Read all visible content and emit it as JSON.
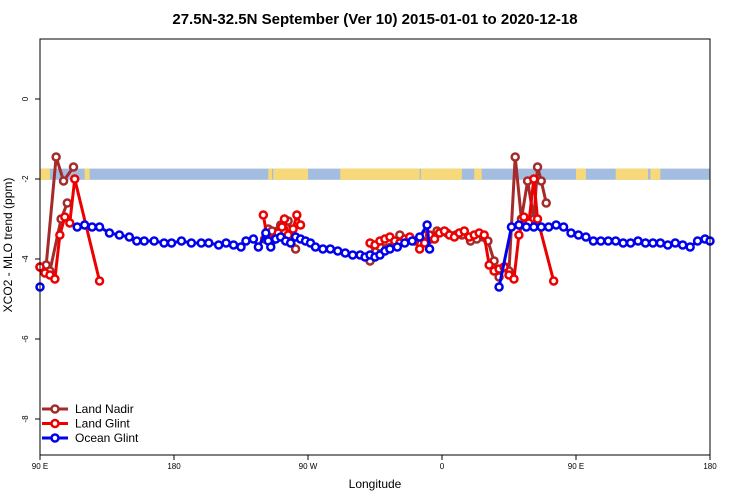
{
  "chart_data": {
    "type": "line",
    "title": "27.5N-32.5N September (Ver 10)   2015-01-01 to 2020-12-18",
    "xlabel": "Longitude",
    "ylabel": "XCO2 - MLO trend (ppm)",
    "xlim": [
      -90,
      180
    ],
    "ylim": [
      -8.9,
      1.5
    ],
    "x_ticks": [
      {
        "value": -90,
        "label": "90 E"
      },
      {
        "value": -36,
        "label": "180"
      },
      {
        "value": 18,
        "label": "90 W"
      },
      {
        "value": 72,
        "label": "0"
      },
      {
        "value": 126,
        "label": "90 E"
      },
      {
        "value": 180,
        "label": "180"
      }
    ],
    "y_ticks": [
      0,
      -2,
      -4,
      -6,
      -8
    ],
    "land_strip": {
      "y_center": -1.88,
      "height": 0.28,
      "ocean_color": "#a3bde0",
      "land_color": "#f7d97a",
      "land_segments": [
        [
          -90,
          -86
        ],
        [
          -72,
          -70
        ],
        [
          2,
          3.5
        ],
        [
          4,
          18
        ],
        [
          31,
          63
        ],
        [
          63.5,
          80
        ],
        [
          85,
          88
        ],
        [
          126,
          130
        ],
        [
          142,
          155
        ],
        [
          156,
          160
        ]
      ]
    },
    "legend": {
      "position": "bottom-left"
    },
    "series": [
      {
        "name": "Land Nadir",
        "color": "#a52a2a",
        "points": [
          [
            -90,
            -4.2
          ],
          [
            -87.5,
            -4.15
          ],
          [
            -83.5,
            -1.45
          ],
          [
            -80.5,
            -2.05
          ],
          [
            -76.5,
            -1.7
          ],
          [
            -90,
            -4.2
          ],
          [
            -86,
            -4.3
          ],
          [
            -81.5,
            -3.0
          ],
          [
            -79,
            -2.6
          ],
          [
            0.5,
            -3.5
          ],
          [
            2,
            -3.25
          ],
          [
            3.5,
            -3.3
          ],
          [
            7,
            -3.15
          ],
          [
            10,
            -3.05
          ],
          [
            13,
            -3.75
          ],
          [
            43,
            -4.05
          ],
          [
            44.5,
            -3.65
          ],
          [
            47,
            -3.7
          ],
          [
            53,
            -3.6
          ],
          [
            55,
            -3.4
          ],
          [
            63,
            -3.6
          ],
          [
            65.5,
            -3.4
          ],
          [
            67.5,
            -3.5
          ],
          [
            70,
            -3.3
          ],
          [
            74,
            -3.35
          ],
          [
            77.5,
            -3.4
          ],
          [
            80,
            -3.4
          ],
          [
            83.5,
            -3.55
          ],
          [
            86,
            -3.5
          ],
          [
            90.5,
            -3.55
          ],
          [
            93,
            -4.05
          ],
          [
            95,
            -4.45
          ],
          [
            97.5,
            -4.2
          ],
          [
            99,
            -4.3
          ],
          [
            101.5,
            -1.45
          ],
          [
            104,
            -3.0
          ],
          [
            106.5,
            -2.05
          ],
          [
            109,
            -3.0
          ],
          [
            110.5,
            -1.7
          ],
          [
            112,
            -2.05
          ],
          [
            114,
            -2.6
          ]
        ]
      },
      {
        "name": "Land Glint",
        "color": "#ee0000",
        "points": [
          [
            -90,
            -4.2
          ],
          [
            -88,
            -4.35
          ],
          [
            -86,
            -4.4
          ],
          [
            -84,
            -4.5
          ],
          [
            -82,
            -3.4
          ],
          [
            -80,
            -2.95
          ],
          [
            -78,
            -3.1
          ],
          [
            -76,
            -2.0
          ],
          [
            -66,
            -4.55
          ],
          [
            0,
            -2.9
          ],
          [
            1.5,
            -3.45
          ],
          [
            3,
            -3.6
          ],
          [
            4.5,
            -3.5
          ],
          [
            6,
            -3.35
          ],
          [
            7.5,
            -3.2
          ],
          [
            8.5,
            -3.0
          ],
          [
            10,
            -3.4
          ],
          [
            12,
            -3.25
          ],
          [
            13.5,
            -2.9
          ],
          [
            15,
            -3.15
          ],
          [
            43,
            -3.6
          ],
          [
            45,
            -3.65
          ],
          [
            47,
            -3.55
          ],
          [
            49,
            -3.5
          ],
          [
            51,
            -3.45
          ],
          [
            53,
            -3.55
          ],
          [
            55,
            -3.6
          ],
          [
            57,
            -3.5
          ],
          [
            59,
            -3.45
          ],
          [
            61,
            -3.55
          ],
          [
            63,
            -3.75
          ],
          [
            65,
            -3.6
          ],
          [
            67,
            -3.4
          ],
          [
            69,
            -3.5
          ],
          [
            71,
            -3.35
          ],
          [
            73,
            -3.3
          ],
          [
            75,
            -3.4
          ],
          [
            77,
            -3.45
          ],
          [
            79,
            -3.35
          ],
          [
            81,
            -3.3
          ],
          [
            83,
            -3.45
          ],
          [
            85,
            -3.4
          ],
          [
            87,
            -3.35
          ],
          [
            89,
            -3.4
          ],
          [
            91,
            -4.15
          ],
          [
            93,
            -4.3
          ],
          [
            95,
            -4.25
          ],
          [
            97,
            -4.2
          ],
          [
            99,
            -4.4
          ],
          [
            101,
            -4.5
          ],
          [
            103,
            -3.4
          ],
          [
            105,
            -2.95
          ],
          [
            107,
            -3.1
          ],
          [
            109,
            -2.0
          ],
          [
            110.5,
            -3.0
          ],
          [
            117,
            -4.55
          ]
        ]
      },
      {
        "name": "Ocean Glint",
        "color": "#0000ee",
        "points": [
          [
            -90,
            -4.7
          ],
          [
            -75,
            -3.2
          ],
          [
            -72,
            -3.15
          ],
          [
            -69,
            -3.2
          ],
          [
            -66,
            -3.2
          ],
          [
            -62,
            -3.35
          ],
          [
            -58,
            -3.4
          ],
          [
            -54,
            -3.45
          ],
          [
            -51,
            -3.55
          ],
          [
            -48,
            -3.55
          ],
          [
            -44,
            -3.55
          ],
          [
            -40,
            -3.6
          ],
          [
            -37,
            -3.6
          ],
          [
            -33,
            -3.55
          ],
          [
            -29,
            -3.6
          ],
          [
            -25,
            -3.6
          ],
          [
            -22,
            -3.6
          ],
          [
            -18,
            -3.65
          ],
          [
            -15,
            -3.6
          ],
          [
            -12,
            -3.65
          ],
          [
            -9,
            -3.7
          ],
          [
            -7,
            -3.55
          ],
          [
            -4,
            -3.5
          ],
          [
            -2,
            -3.7
          ],
          [
            1,
            -3.35
          ],
          [
            2,
            -3.55
          ],
          [
            3,
            -3.7
          ],
          [
            5,
            -3.5
          ],
          [
            7,
            -3.45
          ],
          [
            9,
            -3.55
          ],
          [
            11,
            -3.6
          ],
          [
            13,
            -3.45
          ],
          [
            15,
            -3.5
          ],
          [
            17,
            -3.55
          ],
          [
            19,
            -3.6
          ],
          [
            21,
            -3.7
          ],
          [
            24,
            -3.75
          ],
          [
            27,
            -3.75
          ],
          [
            30,
            -3.8
          ],
          [
            33,
            -3.85
          ],
          [
            36,
            -3.9
          ],
          [
            39,
            -3.9
          ],
          [
            41,
            -3.95
          ],
          [
            43,
            -3.9
          ],
          [
            45,
            -3.95
          ],
          [
            47,
            -3.9
          ],
          [
            49,
            -3.8
          ],
          [
            51,
            -3.75
          ],
          [
            54,
            -3.7
          ],
          [
            57,
            -3.6
          ],
          [
            60,
            -3.55
          ],
          [
            63,
            -3.45
          ],
          [
            66,
            -3.15
          ],
          [
            67,
            -3.75
          ],
          [
            95,
            -4.7
          ],
          [
            100,
            -3.2
          ],
          [
            103,
            -3.15
          ],
          [
            106,
            -3.2
          ],
          [
            109,
            -3.2
          ],
          [
            112,
            -3.2
          ],
          [
            115,
            -3.2
          ],
          [
            118,
            -3.15
          ],
          [
            121,
            -3.2
          ],
          [
            124,
            -3.35
          ],
          [
            127,
            -3.4
          ],
          [
            130,
            -3.45
          ],
          [
            133,
            -3.55
          ],
          [
            136,
            -3.55
          ],
          [
            139,
            -3.55
          ],
          [
            142,
            -3.55
          ],
          [
            145,
            -3.6
          ],
          [
            148,
            -3.6
          ],
          [
            151,
            -3.55
          ],
          [
            154,
            -3.6
          ],
          [
            157,
            -3.6
          ],
          [
            160,
            -3.6
          ],
          [
            163,
            -3.65
          ],
          [
            166,
            -3.6
          ],
          [
            169,
            -3.65
          ],
          [
            172,
            -3.7
          ],
          [
            175,
            -3.55
          ],
          [
            178,
            -3.5
          ],
          [
            180,
            -3.55
          ]
        ]
      }
    ]
  }
}
